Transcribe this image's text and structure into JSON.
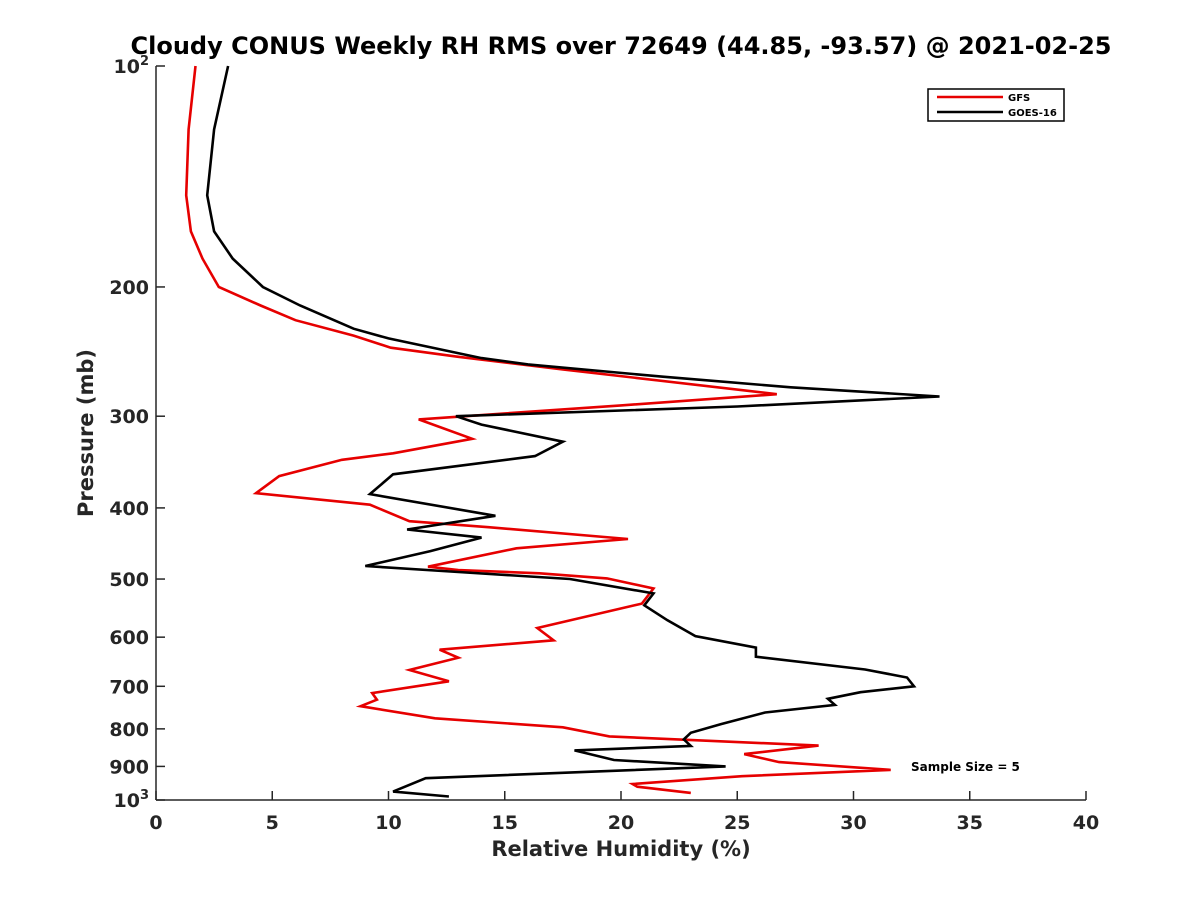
{
  "chart_data": {
    "type": "line",
    "title": "Cloudy CONUS Weekly RH RMS over 72649 (44.85, -93.57) @ 2021-02-25",
    "xlabel": "Relative Humidity (%)",
    "ylabel": "Pressure (mb)",
    "xlim": [
      0,
      40
    ],
    "ylim": [
      100,
      1000
    ],
    "yscale": "log",
    "y_reversed": true,
    "grid": false,
    "legend_position": "top-right",
    "annotation": "Sample Size = 5",
    "x_ticks": [
      0,
      5,
      10,
      15,
      20,
      25,
      30,
      35,
      40
    ],
    "x_tick_labels": [
      "0",
      "5",
      "10",
      "15",
      "20",
      "25",
      "30",
      "35",
      "40"
    ],
    "y_ticks": [
      100,
      200,
      300,
      400,
      500,
      600,
      700,
      800,
      900,
      1000
    ],
    "y_tick_labels": [
      {
        "base": "10",
        "sup": "2"
      },
      {
        "base": "200",
        "sup": ""
      },
      {
        "base": "300",
        "sup": ""
      },
      {
        "base": "400",
        "sup": ""
      },
      {
        "base": "500",
        "sup": ""
      },
      {
        "base": "600",
        "sup": ""
      },
      {
        "base": "700",
        "sup": ""
      },
      {
        "base": "800",
        "sup": ""
      },
      {
        "base": "900",
        "sup": ""
      },
      {
        "base": "10",
        "sup": "3"
      }
    ],
    "series": [
      {
        "name": "GFS",
        "color": "#e60000",
        "points": [
          [
            1.7,
            100
          ],
          [
            1.4,
            122
          ],
          [
            1.3,
            150
          ],
          [
            1.5,
            168
          ],
          [
            2.0,
            183
          ],
          [
            2.7,
            200
          ],
          [
            4.5,
            212
          ],
          [
            6.0,
            222
          ],
          [
            8.5,
            233
          ],
          [
            10.1,
            242
          ],
          [
            13.0,
            249
          ],
          [
            17.5,
            259
          ],
          [
            26.7,
            280
          ],
          [
            20.0,
            290
          ],
          [
            11.3,
            303
          ],
          [
            13.6,
            322
          ],
          [
            10.2,
            337
          ],
          [
            8.0,
            344
          ],
          [
            5.3,
            362
          ],
          [
            4.3,
            382
          ],
          [
            9.2,
            396
          ],
          [
            10.9,
            417
          ],
          [
            14.3,
            425
          ],
          [
            20.3,
            441
          ],
          [
            15.5,
            454
          ],
          [
            11.7,
            481
          ],
          [
            13.0,
            486
          ],
          [
            16.5,
            491
          ],
          [
            19.4,
            499
          ],
          [
            21.4,
            515
          ],
          [
            20.9,
            540
          ],
          [
            16.4,
            583
          ],
          [
            17.1,
            606
          ],
          [
            12.2,
            624
          ],
          [
            13.0,
            640
          ],
          [
            10.9,
            665
          ],
          [
            12.6,
            689
          ],
          [
            9.3,
            715
          ],
          [
            9.5,
            730
          ],
          [
            8.8,
            745
          ],
          [
            12.0,
            774
          ],
          [
            17.5,
            796
          ],
          [
            19.5,
            819
          ],
          [
            28.5,
            843
          ],
          [
            25.3,
            866
          ],
          [
            26.8,
            888
          ],
          [
            31.6,
            910
          ],
          [
            25.2,
            928
          ],
          [
            20.5,
            951
          ],
          [
            20.7,
            959
          ],
          [
            23.0,
            978
          ]
        ]
      },
      {
        "name": "GOES-16",
        "color": "#000000",
        "points": [
          [
            3.1,
            100
          ],
          [
            2.5,
            122
          ],
          [
            2.2,
            150
          ],
          [
            2.5,
            168
          ],
          [
            3.3,
            183
          ],
          [
            4.6,
            200
          ],
          [
            6.2,
            212
          ],
          [
            8.5,
            228
          ],
          [
            10.0,
            235
          ],
          [
            14.0,
            250
          ],
          [
            16.0,
            255
          ],
          [
            21.8,
            265
          ],
          [
            27.3,
            274
          ],
          [
            33.7,
            282
          ],
          [
            25.0,
            291
          ],
          [
            12.9,
            300
          ],
          [
            14.0,
            308
          ],
          [
            17.5,
            325
          ],
          [
            16.3,
            340
          ],
          [
            10.2,
            360
          ],
          [
            9.2,
            383
          ],
          [
            14.6,
            410
          ],
          [
            10.8,
            428
          ],
          [
            14.0,
            439
          ],
          [
            11.8,
            458
          ],
          [
            9.0,
            480
          ],
          [
            13.0,
            489
          ],
          [
            17.8,
            500
          ],
          [
            21.4,
            523
          ],
          [
            21.0,
            543
          ],
          [
            22.0,
            569
          ],
          [
            23.2,
            598
          ],
          [
            25.8,
            620
          ],
          [
            25.8,
            638
          ],
          [
            30.5,
            664
          ],
          [
            32.3,
            681
          ],
          [
            32.6,
            700
          ],
          [
            30.3,
            713
          ],
          [
            28.9,
            728
          ],
          [
            29.2,
            742
          ],
          [
            26.2,
            760
          ],
          [
            24.3,
            788
          ],
          [
            23.0,
            810
          ],
          [
            22.7,
            827
          ],
          [
            23.0,
            844
          ],
          [
            18.0,
            856
          ],
          [
            19.7,
            882
          ],
          [
            24.5,
            900
          ],
          [
            11.6,
            934
          ],
          [
            10.2,
            974
          ],
          [
            12.6,
            989
          ]
        ]
      }
    ]
  }
}
